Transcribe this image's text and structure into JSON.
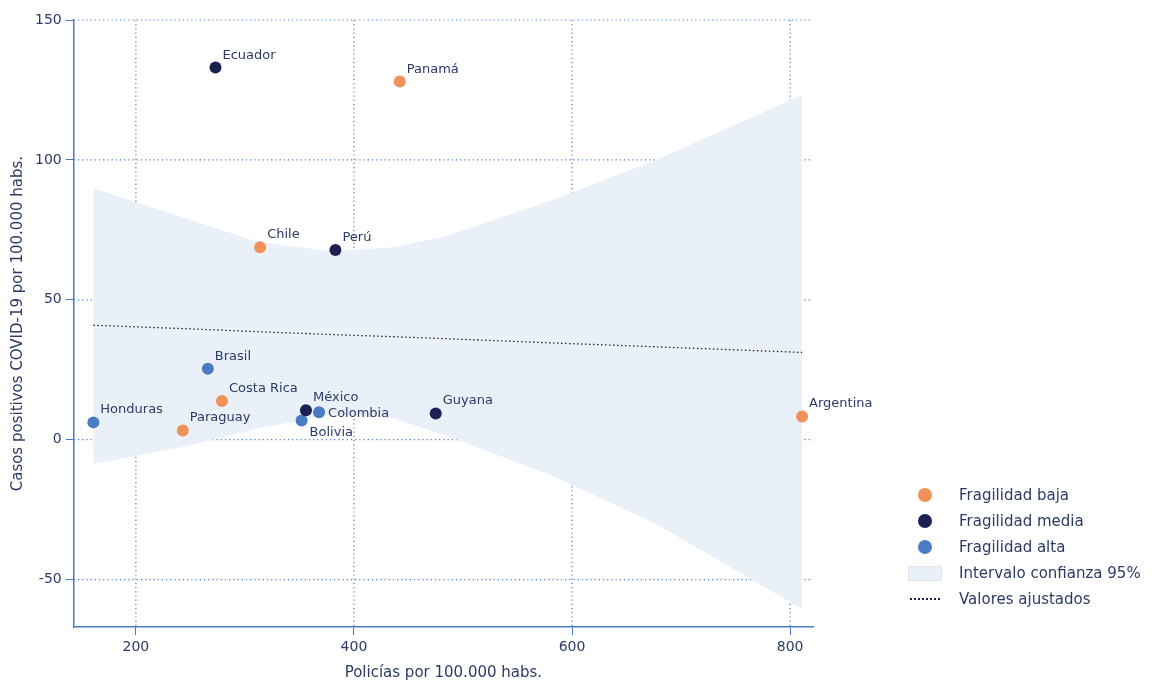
{
  "chart_data": {
    "type": "scatter",
    "xlabel": "Policías por 100.000 habs.",
    "ylabel": "Casos positivos COVID-19 por 100.000 habs.",
    "xlim": [
      143,
      821
    ],
    "ylim": [
      -67,
      150
    ],
    "xticks": [
      200,
      400,
      600,
      800
    ],
    "yticks": [
      -50,
      0,
      50,
      100,
      150
    ],
    "grid": true,
    "legend": "right",
    "series": [
      {
        "name": "Fragilidad baja",
        "color": "#f0915a",
        "marker": "circle",
        "x": [
          442,
          314,
          279,
          243,
          811
        ],
        "values": [
          128,
          68.8,
          13.8,
          3.3,
          8.3
        ]
      },
      {
        "name": "Fragilidad media",
        "color": "#1b2150",
        "marker": "circle",
        "x": [
          273,
          383,
          356,
          475
        ],
        "values": [
          133,
          67.8,
          10.5,
          9.4
        ]
      },
      {
        "name": "Fragilidad alta",
        "color": "#4a7cc4",
        "marker": "circle",
        "x": [
          266,
          368,
          352,
          161
        ],
        "values": [
          25.4,
          9.8,
          6.9,
          6.2
        ]
      },
      {
        "name": "Valores ajustados",
        "type": "line",
        "line_style": "dotted",
        "marker": "none",
        "color": "#1b2150",
        "x": [
          161,
          244,
          312,
          379,
          437,
          485,
          581,
          677,
          811
        ],
        "values": [
          40.9,
          39.7,
          38.6,
          37.6,
          36.8,
          36.1,
          34.6,
          33.2,
          31.2
        ],
        "lower": [
          -8.7,
          -2.5,
          4.0,
          9.1,
          7.6,
          1.4,
          -12.7,
          -30.1,
          -60.5
        ],
        "upper": [
          89.9,
          79.3,
          70.7,
          67.4,
          68.8,
          72.8,
          85.5,
          100,
          123.2
        ]
      }
    ],
    "annotations": [
      "Intervalo confianza 95%",
      {
        "text": "Panamá",
        "x": 442,
        "y": 128
      },
      {
        "text": "Chile",
        "x": 314,
        "y": 68.8
      },
      {
        "text": "Costa Rica",
        "x": 279,
        "y": 13.8
      },
      {
        "text": "Paraguay",
        "x": 243,
        "y": 3.3
      },
      {
        "text": "Argentina",
        "x": 811,
        "y": 8.3
      },
      {
        "text": "Ecuador",
        "x": 273,
        "y": 133
      },
      {
        "text": "Perú",
        "x": 383,
        "y": 67.8
      },
      {
        "text": "México",
        "x": 356,
        "y": 10.5
      },
      {
        "text": "Guyana",
        "x": 475,
        "y": 9.4
      },
      {
        "text": "Brasil",
        "x": 266,
        "y": 25.4
      },
      {
        "text": "Colombia",
        "x": 368,
        "y": 9.8
      },
      {
        "text": "Bolivia",
        "x": 352,
        "y": 6.9
      },
      {
        "text": "Honduras",
        "x": 161,
        "y": 6.2
      }
    ]
  }
}
